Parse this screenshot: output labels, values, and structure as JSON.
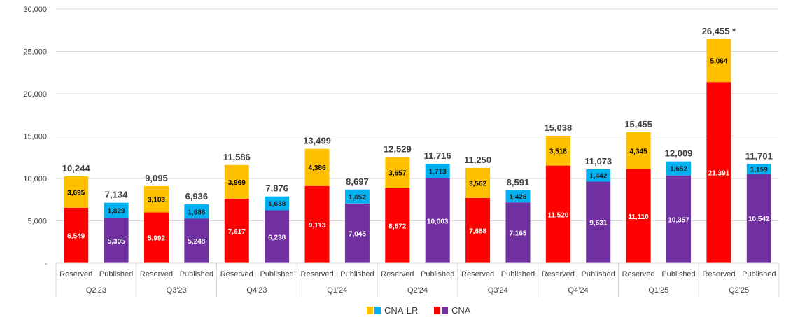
{
  "chart_data": {
    "type": "bar",
    "stacked": true,
    "ylim": [
      0,
      30000
    ],
    "y_ticks": [
      "-",
      "5,000",
      "10,000",
      "15,000",
      "20,000",
      "25,000",
      "30,000"
    ],
    "y_tick_values": [
      0,
      5000,
      10000,
      15000,
      20000,
      25000,
      30000
    ],
    "grid": true,
    "groups": [
      "Q2'23",
      "Q3'23",
      "Q4'23",
      "Q1'24",
      "Q2'24",
      "Q3'24",
      "Q4'24",
      "Q1'25",
      "Q2'25"
    ],
    "subcategories": [
      "Reserved",
      "Published"
    ],
    "bars": [
      {
        "group": "Q2'23",
        "kind": "Reserved",
        "cna": 6549,
        "cna_label": "6,549",
        "lr": 3695,
        "lr_label": "3,695",
        "total_label": "10,244"
      },
      {
        "group": "Q2'23",
        "kind": "Published",
        "cna": 5305,
        "cna_label": "5,305",
        "lr": 1829,
        "lr_label": "1,829",
        "total_label": "7,134"
      },
      {
        "group": "Q3'23",
        "kind": "Reserved",
        "cna": 5992,
        "cna_label": "5,992",
        "lr": 3103,
        "lr_label": "3,103",
        "total_label": "9,095"
      },
      {
        "group": "Q3'23",
        "kind": "Published",
        "cna": 5248,
        "cna_label": "5,248",
        "lr": 1688,
        "lr_label": "1,688",
        "total_label": "6,936"
      },
      {
        "group": "Q4'23",
        "kind": "Reserved",
        "cna": 7617,
        "cna_label": "7,617",
        "lr": 3969,
        "lr_label": "3,969",
        "total_label": "11,586"
      },
      {
        "group": "Q4'23",
        "kind": "Published",
        "cna": 6238,
        "cna_label": "6,238",
        "lr": 1638,
        "lr_label": "1,638",
        "total_label": "7,876"
      },
      {
        "group": "Q1'24",
        "kind": "Reserved",
        "cna": 9113,
        "cna_label": "9,113",
        "lr": 4386,
        "lr_label": "4,386",
        "total_label": "13,499"
      },
      {
        "group": "Q1'24",
        "kind": "Published",
        "cna": 7045,
        "cna_label": "7,045",
        "lr": 1652,
        "lr_label": "1,652",
        "total_label": "8,697"
      },
      {
        "group": "Q2'24",
        "kind": "Reserved",
        "cna": 8872,
        "cna_label": "8,872",
        "lr": 3657,
        "lr_label": "3,657",
        "total_label": "12,529"
      },
      {
        "group": "Q2'24",
        "kind": "Published",
        "cna": 10003,
        "cna_label": "10,003",
        "lr": 1713,
        "lr_label": "1,713",
        "total_label": "11,716"
      },
      {
        "group": "Q3'24",
        "kind": "Reserved",
        "cna": 7688,
        "cna_label": "7,688",
        "lr": 3562,
        "lr_label": "3,562",
        "total_label": "11,250"
      },
      {
        "group": "Q3'24",
        "kind": "Published",
        "cna": 7165,
        "cna_label": "7,165",
        "lr": 1426,
        "lr_label": "1,426",
        "total_label": "8,591"
      },
      {
        "group": "Q4'24",
        "kind": "Reserved",
        "cna": 11520,
        "cna_label": "11,520",
        "lr": 3518,
        "lr_label": "3,518",
        "total_label": "15,038"
      },
      {
        "group": "Q4'24",
        "kind": "Published",
        "cna": 9631,
        "cna_label": "9,631",
        "lr": 1442,
        "lr_label": "1,442",
        "total_label": "11,073"
      },
      {
        "group": "Q1'25",
        "kind": "Reserved",
        "cna": 11110,
        "cna_label": "11,110",
        "lr": 4345,
        "lr_label": "4,345",
        "total_label": "15,455"
      },
      {
        "group": "Q1'25",
        "kind": "Published",
        "cna": 10357,
        "cna_label": "10,357",
        "lr": 1652,
        "lr_label": "1,652",
        "total_label": "12,009"
      },
      {
        "group": "Q2'25",
        "kind": "Reserved",
        "cna": 21391,
        "cna_label": "21,391",
        "lr": 5064,
        "lr_label": "5,064",
        "total_label": "26,455 *"
      },
      {
        "group": "Q2'25",
        "kind": "Published",
        "cna": 10542,
        "cna_label": "10,542",
        "lr": 1159,
        "lr_label": "1,159",
        "total_label": "11,701"
      }
    ],
    "legend": [
      {
        "label": "CNA-LR",
        "colors": [
          "#FFC000",
          "#00B0F0"
        ]
      },
      {
        "label": "CNA",
        "colors": [
          "#FF0000",
          "#7030A0"
        ]
      }
    ],
    "legend_position": "bottom",
    "colors": {
      "reserved_cna": "#FF0000",
      "reserved_lr": "#FFC000",
      "published_cna": "#7030A0",
      "published_lr": "#00B0F0",
      "grid": "#D9D9D9",
      "axis_text": "#404040"
    }
  }
}
